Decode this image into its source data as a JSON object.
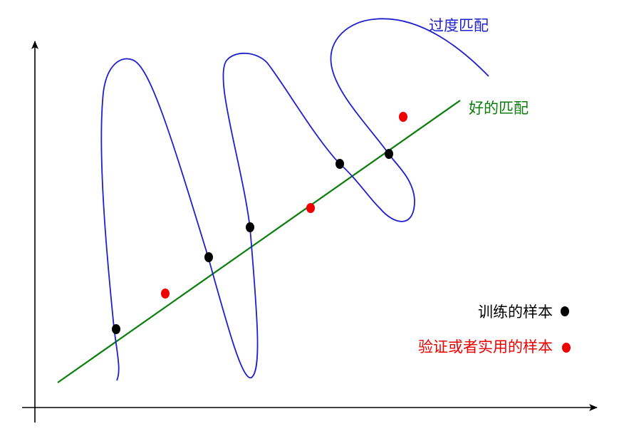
{
  "labels": {
    "overfit": "过度匹配",
    "good_fit": "好的匹配"
  },
  "legend": {
    "training": "训练的样本",
    "validation": "验证或者实用的样本"
  },
  "colors": {
    "overfit_curve": "#1f1fcf",
    "good_fit_line": "#0b7d0b",
    "training_point": "#000000",
    "validation_point": "#ee0000",
    "axes": "#000000"
  }
}
